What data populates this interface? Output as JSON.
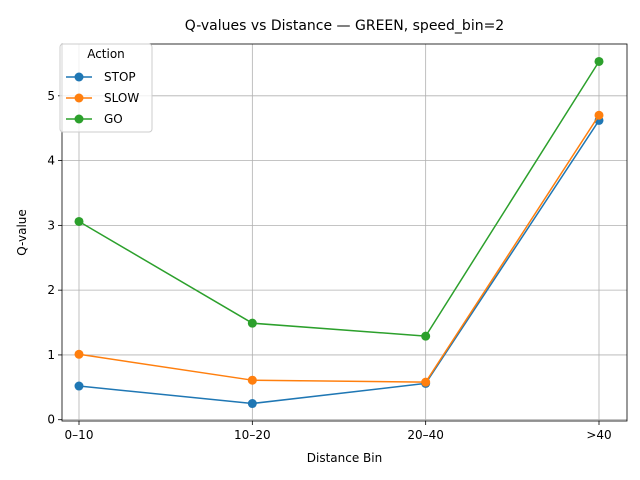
{
  "chart_data": {
    "type": "line",
    "title": "Q-values vs Distance — GREEN, speed_bin=2",
    "xlabel": "Distance Bin",
    "ylabel": "Q-value",
    "categories": [
      "0–10",
      "10–20",
      "20–40",
      ">40"
    ],
    "ylim": [
      -0.02,
      5.8
    ],
    "yticks": [
      0,
      1,
      2,
      3,
      4,
      5
    ],
    "grid": true,
    "legend": {
      "title": "Action",
      "placement": "top-left"
    },
    "series": [
      {
        "name": "STOP",
        "color": "#1f77b4",
        "values": [
          0.52,
          0.25,
          0.56,
          4.62
        ]
      },
      {
        "name": "SLOW",
        "color": "#ff7f0e",
        "values": [
          1.01,
          0.61,
          0.58,
          4.7
        ]
      },
      {
        "name": "GO",
        "color": "#2ca02c",
        "values": [
          3.06,
          1.49,
          1.29,
          5.53
        ]
      }
    ]
  }
}
